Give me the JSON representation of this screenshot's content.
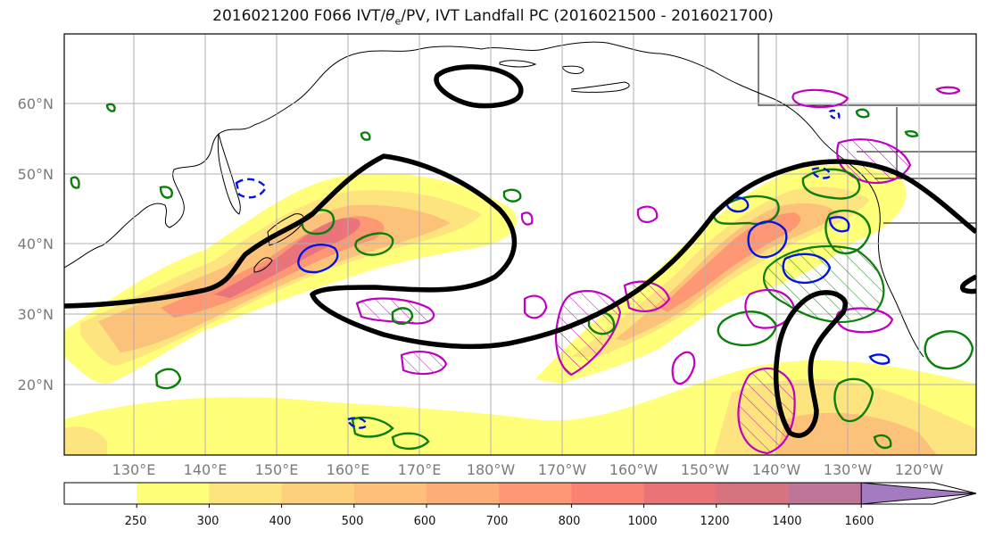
{
  "title": {
    "prefix": "2016021200 F066 IVT/",
    "theta": "θ",
    "sub": "e",
    "suffix": "/PV, IVT Landfall PC (2016021500 - 2016021700)"
  },
  "axes": {
    "lat_labels": [
      "60°N",
      "50°N",
      "40°N",
      "30°N",
      "20°N"
    ],
    "lon_labels": [
      "130°E",
      "140°E",
      "150°E",
      "160°E",
      "170°E",
      "180°W",
      "170°W",
      "160°W",
      "150°W",
      "140°W",
      "130°W",
      "120°W"
    ],
    "grid": true
  },
  "colorbar": {
    "ticks": [
      "250",
      "300",
      "400",
      "500",
      "600",
      "700",
      "800",
      "1000",
      "1200",
      "1400",
      "1600"
    ],
    "colors": [
      "#ffffff",
      "#ffff7a",
      "#fee47e",
      "#fdd17c",
      "#fdbf7a",
      "#fdad78",
      "#fd9774",
      "#fa8272",
      "#e97477",
      "#d5737f",
      "#be7598",
      "#a47ac1"
    ],
    "extend": "max"
  },
  "contour_colors": {
    "ivt_fill_low": "#ffff7a",
    "ivt_fill_high": "#e46877",
    "theta_e": "#000000",
    "pv_green": "#0a7f0a",
    "pv_blue": "#0014e6",
    "pv_magenta": "#c000c0"
  }
}
